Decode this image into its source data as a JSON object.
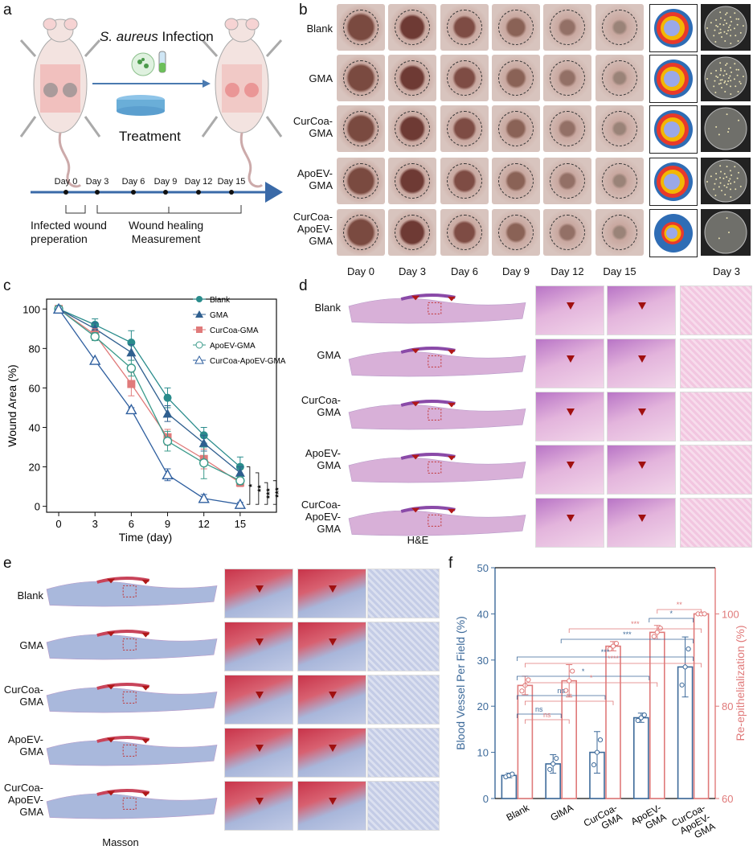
{
  "panel_labels": {
    "a": "a",
    "b": "b",
    "c": "c",
    "d": "d",
    "e": "e",
    "f": "f"
  },
  "panel_a": {
    "infection_label": "S. aureus Infection",
    "infection_italic": "S. aureus",
    "infection_rest": " Infection",
    "treatment_label": "Treatment",
    "timeline_days": [
      "Day 0",
      "Day 3",
      "Day 6",
      "Day 9",
      "Day 12",
      "Day 15"
    ],
    "phase1": "Infected wound\npreperation",
    "phase2": "Wound healing\nMeasurement"
  },
  "panel_b": {
    "rows": [
      "Blank",
      "GMA",
      "CurCoa-\nGMA",
      "ApoEV-\nGMA",
      "CurCoa-\nApoEV-\nGMA"
    ],
    "days": [
      "Day 0",
      "Day 3",
      "Day 6",
      "Day 9",
      "Day 12",
      "Day 15"
    ],
    "plate_label": "Day 3",
    "colors": {
      "day0": "#2f6db5",
      "day3": "#e8392b",
      "day6": "#f2b705",
      "day9": "#9aa8e8"
    }
  },
  "panel_c": {
    "chart_data": {
      "type": "line",
      "xlabel": "Time (day)",
      "ylabel": "Wound Area (%)",
      "x": [
        0,
        3,
        6,
        9,
        12,
        15
      ],
      "xlim": [
        -1,
        18
      ],
      "ylim": [
        -3,
        105
      ],
      "yticks": [
        0,
        20,
        40,
        60,
        80,
        100
      ],
      "series": [
        {
          "name": "Blank",
          "values": [
            100,
            92,
            83,
            55,
            36,
            20
          ],
          "err": [
            0,
            3,
            6,
            5,
            4,
            5
          ],
          "color": "#2a8c8c",
          "marker": "circle-filled"
        },
        {
          "name": "GMA",
          "values": [
            100,
            90,
            78,
            47,
            32,
            17
          ],
          "err": [
            0,
            3,
            4,
            4,
            4,
            3
          ],
          "color": "#2f5f8f",
          "marker": "triangle-filled"
        },
        {
          "name": "CurCoa-GMA",
          "values": [
            100,
            87,
            62,
            35,
            24,
            12
          ],
          "err": [
            0,
            3,
            6,
            4,
            5,
            2
          ],
          "color": "#e07a7a",
          "marker": "square-filled"
        },
        {
          "name": "ApoEV-GMA",
          "values": [
            100,
            86,
            70,
            33,
            22,
            13
          ],
          "err": [
            0,
            2,
            4,
            5,
            8,
            2
          ],
          "color": "#3a9a8a",
          "marker": "circle-open"
        },
        {
          "name": "CurCoa-ApoEV-GMA",
          "values": [
            100,
            74,
            49,
            16,
            4,
            1
          ],
          "err": [
            0,
            0,
            1,
            3,
            2,
            1
          ],
          "color": "#2f5f9f",
          "marker": "triangle-open"
        }
      ],
      "significance": [
        "*",
        "**",
        "***",
        "***"
      ]
    }
  },
  "panel_d": {
    "rows": [
      "Blank",
      "GMA",
      "CurCoa-\nGMA",
      "ApoEV-\nGMA",
      "CurCoa-\nApoEV-\nGMA"
    ],
    "caption": "H&E"
  },
  "panel_e": {
    "rows": [
      "Blank",
      "GMA",
      "CurCoa-\nGMA",
      "ApoEV-\nGMA",
      "CurCoa-\nApoEV-\nGMA"
    ],
    "caption": "Masson"
  },
  "panel_f": {
    "chart_data": {
      "type": "bar",
      "categories": [
        "Blank",
        "GlMA",
        "CurCoa-\nGMA",
        "ApoEV-\nGMA",
        "CurCoa-\nApoEV-\nGMA"
      ],
      "ylabel_left": "Blood Vessel Per Field (%)",
      "ylabel_right": "Re-epithelialization (%)",
      "ylim_left": [
        0,
        50
      ],
      "ylim_right": [
        60,
        110
      ],
      "yticks_left": [
        0,
        10,
        20,
        30,
        40,
        50
      ],
      "yticks_right": [
        60,
        80,
        100
      ],
      "series": [
        {
          "name": "Blood Vessel Per Field (%)",
          "axis": "left",
          "color": "#3d6a9a",
          "values": [
            5,
            7.5,
            10,
            17.5,
            28.5
          ],
          "err": [
            0.5,
            2,
            4.5,
            1,
            6.5
          ]
        },
        {
          "name": "Re-epithelialization (%)",
          "axis": "right",
          "color": "#e07a7a",
          "values": [
            84.5,
            85.5,
            93,
            96,
            100
          ],
          "err": [
            2,
            3.5,
            1,
            1.5,
            0
          ]
        }
      ],
      "sig_blue": [
        "ns",
        "ns",
        "*",
        "***",
        "***",
        "*"
      ],
      "sig_red": [
        "ns",
        "**",
        "*",
        "****",
        "***",
        "**"
      ]
    }
  }
}
